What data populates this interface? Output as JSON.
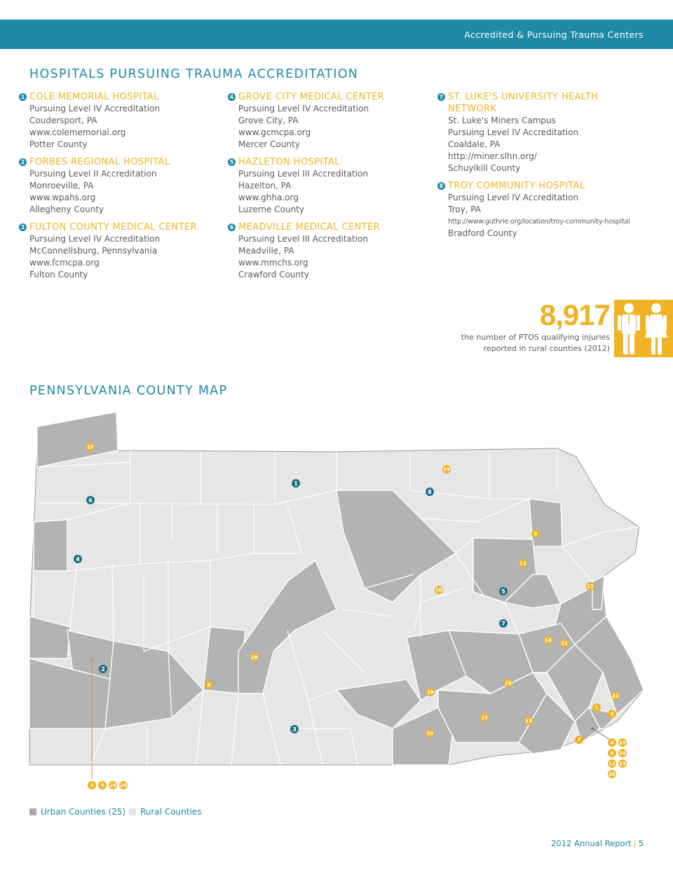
{
  "header": {
    "title": "Accredited & Pursuing Trauma Centers"
  },
  "section1": {
    "title": "HOSPITALS PURSUING TRAUMA ACCREDITATION"
  },
  "hospitals": [
    {
      "num": "1",
      "name": "COLE MEMORIAL HOSPITAL",
      "lines": [
        "Pursuing Level IV Accreditation",
        "Coudersport, PA",
        "www.colememorial.org",
        "Potter County"
      ]
    },
    {
      "num": "2",
      "name": "FORBES REGIONAL HOSPITAL",
      "lines": [
        "Pursuing Level II Accreditation",
        "Monroeville, PA",
        "www.wpahs.org",
        "Allegheny County"
      ]
    },
    {
      "num": "3",
      "name": "FULTON COUNTY MEDICAL CENTER",
      "lines": [
        "Pursuing Level IV Accreditation",
        "McConnellsburg, Pennsylvania",
        "www.fcmcpa.org",
        "Fulton County"
      ]
    },
    {
      "num": "4",
      "name": "GROVE CITY MEDICAL CENTER",
      "lines": [
        "Pursuing Level IV Accreditation",
        "Grove City, PA",
        "www.gcmcpa.org",
        "Mercer County"
      ]
    },
    {
      "num": "5",
      "name": "HAZLETON HOSPITAL",
      "lines": [
        "Pursuing Level III Accreditation",
        "Hazelton, PA",
        "www.ghha.org",
        "Luzerne County"
      ]
    },
    {
      "num": "6",
      "name": "MEADVILLE MEDICAL CENTER",
      "lines": [
        "Pursuing Level III Accreditation",
        "Meadville, PA",
        "www.mmchs.org",
        "Crawford County"
      ]
    },
    {
      "num": "7",
      "name": "ST. LUKE'S UNIVERSITY HEALTH NETWORK",
      "lines": [
        "St. Luke's Miners Campus",
        "Pursuing Level IV Accreditation",
        "Coaldale, PA",
        "http://miner.slhn.org/",
        "Schuylkill County"
      ]
    },
    {
      "num": "8",
      "name": "TROY COMMUNITY HOSPITAL",
      "lines": [
        "Pursuing Level IV Accreditation",
        "Troy, PA",
        "http://www.guthrie.org/location/troy-community-hospital",
        "Bradford County"
      ]
    }
  ],
  "stat": {
    "value": "8,917",
    "caption_line1": "the number of PTOS qualifying injuries",
    "caption_line2": "reported in rural counties (2012)",
    "icon": "man-woman-icon"
  },
  "section2": {
    "title": "PENNSYLVANIA COUNTY MAP"
  },
  "map": {
    "hospital_markers": [
      "1",
      "2",
      "3",
      "4",
      "5",
      "6",
      "7",
      "8"
    ],
    "trauma_markers": [
      "1",
      "2",
      "3",
      "4",
      "5",
      "6",
      "7",
      "8",
      "9",
      "10",
      "11",
      "12",
      "13",
      "14",
      "15",
      "16",
      "17",
      "18",
      "19",
      "20",
      "21",
      "22",
      "23",
      "24",
      "25",
      "26",
      "27",
      "28",
      "29",
      "30"
    ]
  },
  "legend": {
    "urban": "Urban Counties (25)",
    "rural": "Rural Counties"
  },
  "colors": {
    "accent_blue": "#1f8aa6",
    "accent_yellow": "#f0b323",
    "urban": "#b3b3b3",
    "rural": "#e6e6e6"
  },
  "footer": {
    "report": "2012 Annual Report",
    "page": "5"
  }
}
